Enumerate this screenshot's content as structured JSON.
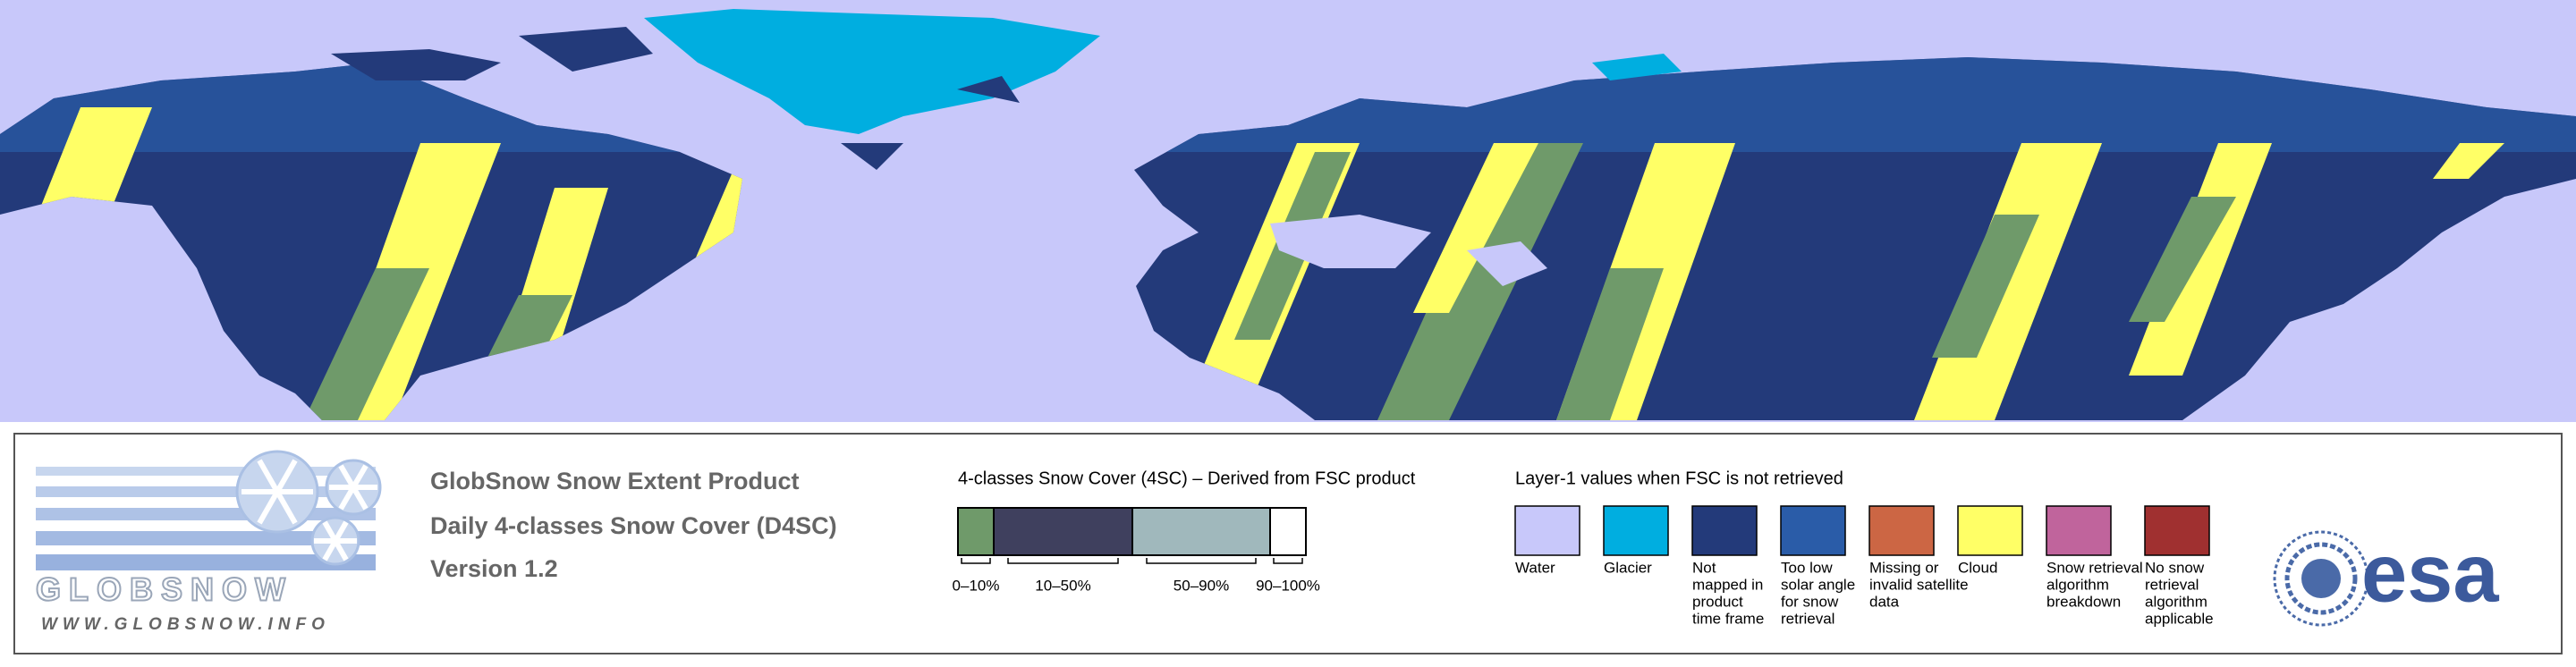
{
  "logo": {
    "name": "GLOBSNOW",
    "url": "WWW.GLOBSNOW.INFO"
  },
  "product": {
    "title": "GlobSnow Snow Extent Product",
    "subtitle": "Daily 4-classes Snow Cover (D4SC)",
    "version": "Version 1.2"
  },
  "snow_cover_legend": {
    "title": "4-classes Snow Cover (4SC) – Derived from FSC product",
    "classes": [
      {
        "label": "0–10%",
        "color": "#6f9a6a"
      },
      {
        "label": "10–50%",
        "color": "#3f405e"
      },
      {
        "label": "50–90%",
        "color": "#a0b8bc"
      },
      {
        "label": "90–100%",
        "color": "#ffffff"
      }
    ]
  },
  "layer1_legend": {
    "title": "Layer-1 values when FSC is not retrieved",
    "items": [
      {
        "lines": [
          "Water"
        ],
        "color": "#c8c8fa"
      },
      {
        "lines": [
          "Glacier"
        ],
        "color": "#00aee0"
      },
      {
        "lines": [
          "Not",
          "mapped in",
          "product",
          "time frame"
        ],
        "color": "#233a7a"
      },
      {
        "lines": [
          "Too low",
          "solar angle",
          "for snow",
          "retrieval"
        ],
        "color": "#2a5ca8"
      },
      {
        "lines": [
          "Missing or",
          "invalid satellite",
          "data"
        ],
        "color": "#cc6644"
      },
      {
        "lines": [
          "Cloud"
        ],
        "color": "#ffff66"
      },
      {
        "lines": [
          "Snow retrieval",
          "algorithm",
          "breakdown"
        ],
        "color": "#c0649c"
      },
      {
        "lines": [
          "No snow",
          "retrieval",
          "algorithm",
          "applicable"
        ],
        "color": "#a03030"
      }
    ]
  },
  "esa": {
    "name": "esa"
  }
}
